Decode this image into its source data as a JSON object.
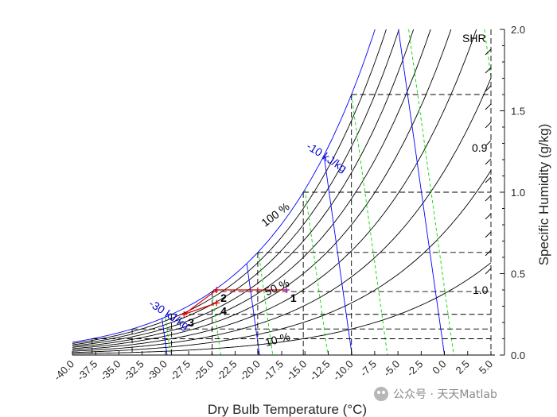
{
  "chart_data": {
    "type": "line",
    "title": "",
    "xlabel": "Dry Bulb Temperature (°C)",
    "ylabel": "Specific Humidity (g/kg)",
    "xlim": [
      -40,
      5
    ],
    "ylim": [
      0,
      2.0
    ],
    "x_ticks": [
      "-40.0",
      "-37.5",
      "-35.0",
      "-32.5",
      "-30.0",
      "-27.5",
      "-25.0",
      "-22.5",
      "-20.0",
      "-17.5",
      "-15.0",
      "-12.5",
      "-10.0",
      "-7.5",
      "-5.0",
      "-2.5",
      "0.0",
      "2.5",
      "5.0"
    ],
    "y_ticks": [
      "0.0",
      "0.5",
      "1.0",
      "1.5",
      "2.0"
    ],
    "rh_curves_percent": [
      10,
      20,
      30,
      40,
      50,
      60,
      70,
      80,
      90,
      100
    ],
    "enthalpy_lines_kj_per_kg": [
      -30,
      -20,
      -10,
      0
    ],
    "wet_bulb_lines_c": [
      -30,
      -25,
      -20,
      -15,
      -10,
      -5,
      0
    ],
    "dew_point_guides": [
      {
        "tdp": -15,
        "w": 0.895
      },
      {
        "tdp": -20,
        "w": 0.559
      },
      {
        "tdp": -25,
        "w": 0.34
      }
    ],
    "sat_guides_w": [
      0.1,
      0.16,
      0.25,
      0.39,
      0.63,
      1.0,
      1.6
    ],
    "process_points": [
      {
        "label": "1",
        "t": -17.0,
        "w": 0.4
      },
      {
        "label": "2",
        "t": -24.5,
        "w": 0.4
      },
      {
        "label": "3",
        "t": -28.0,
        "w": 0.25
      },
      {
        "label": "4",
        "t": -24.5,
        "w": 0.32
      }
    ],
    "annotations": {
      "rh100": "100 %",
      "rh50": "50 %",
      "rh10": "10 %",
      "enth_m10": "-10 kJ/kg",
      "enth_m30": "-30 kJ/kg",
      "shr_title": "SHR",
      "shr_09": "0.9",
      "shr_10": "1.0"
    },
    "shr_scale_values": [
      0.9,
      1.0
    ],
    "grid": false
  },
  "watermark": "公众号 · 天天Matlab"
}
